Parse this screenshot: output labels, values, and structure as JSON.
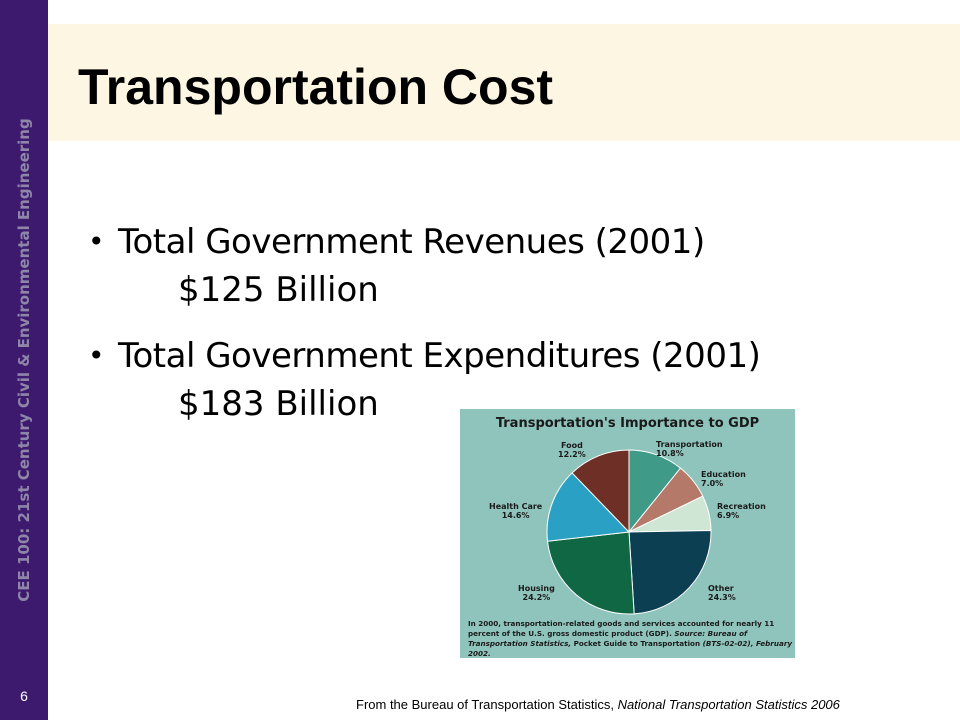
{
  "sidebar": {
    "text": "CEE 100: 21st Century Civil & Environmental Engineering",
    "page_number": "6"
  },
  "slide": {
    "title": "Transportation Cost",
    "bullets": [
      {
        "line1": "Total Government Revenues (2001)",
        "line2": "$125 Billion"
      },
      {
        "line1": "Total Government Expenditures (2001)",
        "line2": "$183 Billion"
      }
    ],
    "source_prefix": "From the Bureau of Transportation Statistics, ",
    "source_publication": "National Transportation Statistics 2006"
  },
  "colors": {
    "sidebar": "#3d1a6e",
    "title_band": "#fdf6e3",
    "chart_background": "#8fc4bc"
  },
  "chart_data": {
    "type": "pie",
    "title": "Transportation's Importance to GDP",
    "slices": [
      {
        "label": "Transportation",
        "value_label": "10.8%",
        "value": 10.8,
        "color": "#3f9a87"
      },
      {
        "label": "Education",
        "value_label": "7.0%",
        "value": 7.0,
        "color": "#b5796a"
      },
      {
        "label": "Recreation",
        "value_label": "6.9%",
        "value": 6.9,
        "color": "#cfe6d5"
      },
      {
        "label": "Other",
        "value_label": "24.3%",
        "value": 24.3,
        "color": "#0d3f52"
      },
      {
        "label": "Housing",
        "value_label": "24.2%",
        "value": 24.2,
        "color": "#0f6744"
      },
      {
        "label": "Health Care",
        "value_label": "14.6%",
        "value": 14.6,
        "color": "#2aa0c4"
      },
      {
        "label": "Food",
        "value_label": "12.2%",
        "value": 12.2,
        "color": "#6e2f26"
      }
    ],
    "note": {
      "text_1": "In 2000, transportation-related goods and services accounted for nearly 11 percent of the U.S. gross domestic product (GDP). ",
      "source_italic_1": "Source: Bureau of Transportation Statistics, ",
      "text_2": "Pocket Guide to Transportation ",
      "source_italic_2": "(BTS-02-02), February 2002."
    }
  }
}
